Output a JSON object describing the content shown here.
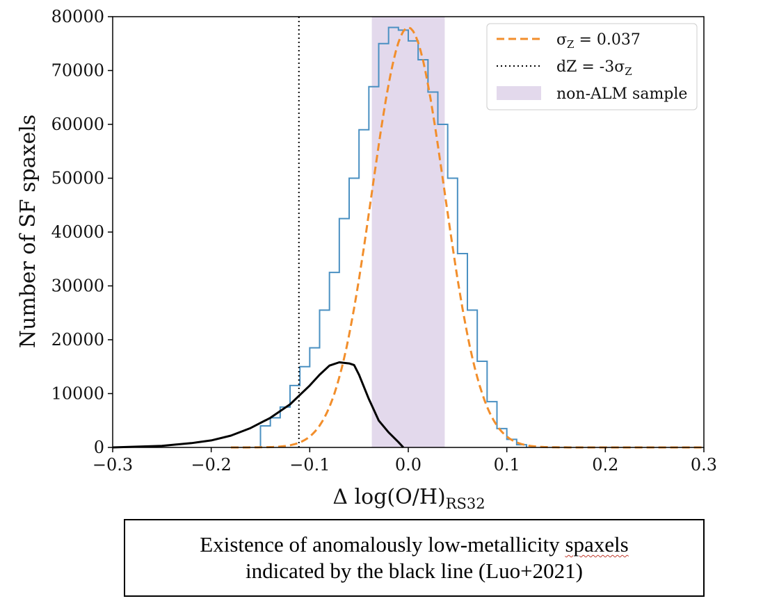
{
  "chart_data": {
    "type": "line",
    "title": "",
    "xlabel": "Δ log(O/H)",
    "xlabel_subscript": "RS32",
    "ylabel": "Number of SF spaxels",
    "xlim": [
      -0.3,
      0.3
    ],
    "ylim": [
      0,
      80000
    ],
    "x_ticks": [
      -0.3,
      -0.2,
      -0.1,
      0.0,
      0.1,
      0.2,
      0.3
    ],
    "x_tick_labels": [
      "−0.3",
      "−0.2",
      "−0.1",
      "0.0",
      "0.1",
      "0.2",
      "0.3"
    ],
    "y_ticks": [
      0,
      10000,
      20000,
      30000,
      40000,
      50000,
      60000,
      70000,
      80000
    ],
    "y_tick_labels": [
      "0",
      "10000",
      "20000",
      "30000",
      "40000",
      "50000",
      "60000",
      "70000",
      "80000"
    ],
    "grid": false,
    "legend_position": "top-right",
    "series": [
      {
        "name": "histogram",
        "style": "step",
        "color": "#4a90c2",
        "bin_edges": [
          -0.15,
          -0.14,
          -0.13,
          -0.12,
          -0.11,
          -0.1,
          -0.09,
          -0.08,
          -0.07,
          -0.06,
          -0.05,
          -0.04,
          -0.03,
          -0.02,
          -0.01,
          0.0,
          0.01,
          0.02,
          0.03,
          0.04,
          0.05,
          0.06,
          0.07,
          0.08,
          0.09,
          0.1,
          0.11,
          0.12
        ],
        "counts": [
          4000,
          5500,
          7500,
          11500,
          15000,
          18500,
          25500,
          32500,
          42500,
          50000,
          59000,
          67000,
          75000,
          78000,
          77500,
          75500,
          72000,
          66000,
          60000,
          50000,
          36000,
          25500,
          16000,
          8500,
          3500,
          1500,
          500
        ]
      },
      {
        "name": "σZ = 0.037",
        "style": "dashed",
        "color": "#f28e2b",
        "mean": 0.0,
        "sigma": 0.037,
        "peak": 78000
      },
      {
        "name": "black line",
        "style": "solid",
        "color": "#000000",
        "x": [
          -0.3,
          -0.25,
          -0.22,
          -0.2,
          -0.18,
          -0.16,
          -0.14,
          -0.12,
          -0.1,
          -0.09,
          -0.08,
          -0.07,
          -0.06,
          -0.055,
          -0.05,
          -0.04,
          -0.03,
          -0.02,
          -0.01,
          -0.005
        ],
        "y": [
          0,
          300,
          800,
          1300,
          2200,
          3600,
          5500,
          8000,
          11500,
          13500,
          15200,
          15800,
          15600,
          15300,
          13500,
          9000,
          5000,
          2800,
          1000,
          0
        ]
      },
      {
        "name": "dZ = -3σZ",
        "style": "dotted",
        "color": "#000000",
        "x_value": -0.111
      },
      {
        "name": "non-ALM sample",
        "style": "band",
        "color": "#e3d9ec",
        "x_range": [
          -0.037,
          0.037
        ]
      }
    ],
    "legend": [
      {
        "label_main": "σ",
        "label_sub": "Z",
        "label_rest": " = 0.037",
        "style": "dashed",
        "color": "#f28e2b"
      },
      {
        "label_main": "dZ = -3σ",
        "label_sub": "Z",
        "label_rest": "",
        "style": "dotted",
        "color": "#000000"
      },
      {
        "label_main": "non-ALM sample",
        "label_sub": "",
        "label_rest": "",
        "style": "band",
        "color": "#e3d9ec"
      }
    ]
  },
  "caption": {
    "line1_before": "Existence of anomalously low-metallicity ",
    "line1_marked": "spaxels",
    "line2": "indicated by the black line (Luo+2021)"
  }
}
